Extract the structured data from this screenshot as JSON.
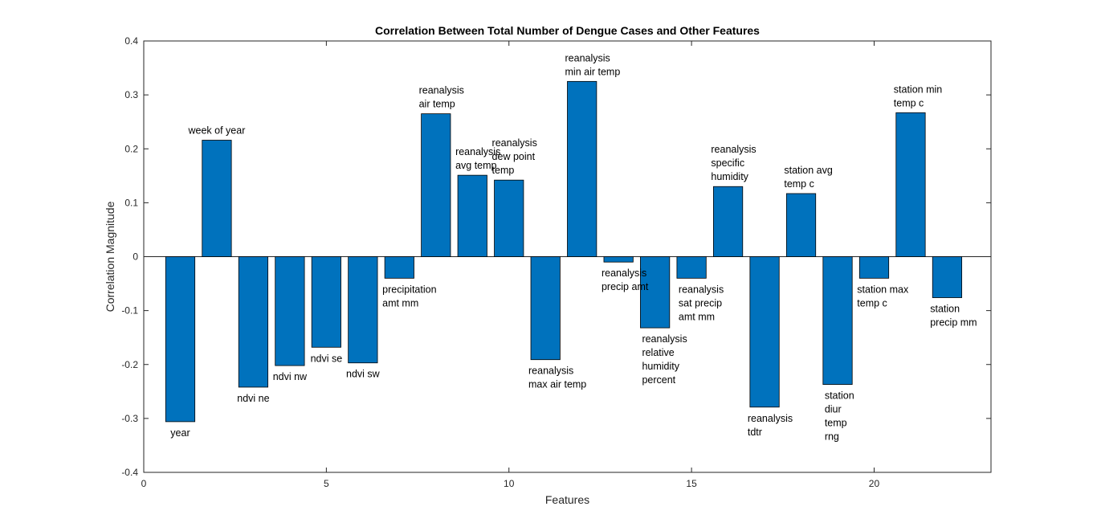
{
  "chart_data": {
    "type": "bar",
    "title": "Correlation Between Total Number of Dengue Cases and Other Features",
    "xlabel": "Features",
    "ylabel": "Correlation Magnitude",
    "xlim": [
      0,
      23.2
    ],
    "ylim": [
      -0.4,
      0.4
    ],
    "xticks": [
      0,
      5,
      10,
      15,
      20
    ],
    "yticks": [
      -0.4,
      -0.3,
      -0.2,
      -0.1,
      0,
      0.1,
      0.2,
      0.3,
      0.4
    ],
    "bar_color": "#0072BD",
    "grid": false,
    "x": [
      1,
      2,
      3,
      4,
      5,
      6,
      7,
      8,
      9,
      10,
      11,
      12,
      13,
      14,
      15,
      16,
      17,
      18,
      19,
      20,
      21,
      22
    ],
    "values": [
      -0.306,
      0.216,
      -0.242,
      -0.202,
      -0.168,
      -0.197,
      -0.04,
      0.265,
      0.151,
      0.142,
      -0.191,
      0.325,
      -0.01,
      -0.132,
      -0.04,
      0.13,
      -0.279,
      0.117,
      -0.237,
      -0.04,
      0.267,
      -0.076
    ],
    "labels": [
      [
        "year"
      ],
      [
        "week of year"
      ],
      [
        "ndvi ne"
      ],
      [
        "ndvi nw"
      ],
      [
        "ndvi se"
      ],
      [
        "ndvi sw"
      ],
      [
        "precipitation",
        "amt mm"
      ],
      [
        "reanalysis",
        "air temp"
      ],
      [
        "reanalysis",
        "avg temp"
      ],
      [
        "reanalysis",
        "dew point",
        "temp"
      ],
      [
        "reanalysis",
        "max air temp"
      ],
      [
        "reanalysis",
        "min air temp"
      ],
      [
        "reanalysis",
        "precip amt"
      ],
      [
        "reanalysis",
        "relative",
        "humidity",
        "percent"
      ],
      [
        "reanalysis",
        "sat precip",
        "amt mm"
      ],
      [
        "reanalysis",
        "specific",
        "humidity"
      ],
      [
        "reanalysis",
        "tdtr"
      ],
      [
        "station avg",
        "temp c"
      ],
      [
        "station",
        "diur",
        "temp",
        "rng"
      ],
      [
        "station max",
        "temp c"
      ],
      [
        "station min",
        "temp c"
      ],
      [
        "station",
        "precip mm"
      ]
    ]
  }
}
